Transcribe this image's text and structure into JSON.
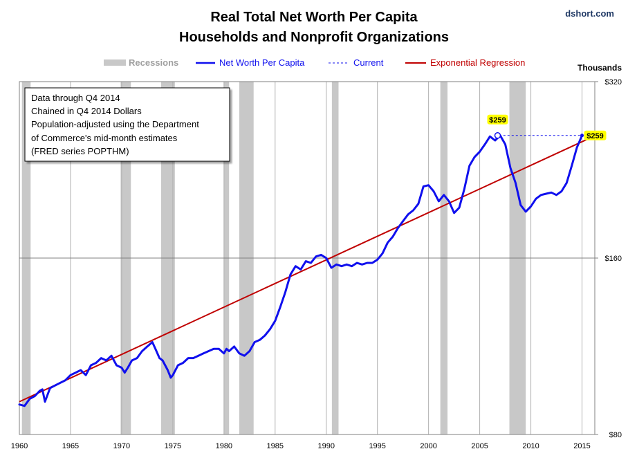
{
  "brand": "dshort.com",
  "chart_data": {
    "type": "line",
    "title": "Real Total Net Worth Per Capita",
    "subtitle": "Households and Nonprofit Organizations",
    "y_unit_label": "Thousands",
    "y_scale": "log",
    "ylim": [
      80,
      320
    ],
    "xlim": [
      1960.0,
      2016.25
    ],
    "x_ticks": [
      1960,
      1965,
      1970,
      1975,
      1980,
      1985,
      1990,
      1995,
      2000,
      2005,
      2010,
      2015
    ],
    "y_ticks": [
      {
        "value": 80,
        "label": "$80"
      },
      {
        "value": 160,
        "label": "$160"
      },
      {
        "value": 320,
        "label": "$320"
      }
    ],
    "grid": true,
    "legend": [
      {
        "label": "Recessions",
        "color": "#c8c8c8",
        "style": "band"
      },
      {
        "label": "Net Worth Per Capita",
        "color": "#1010ee",
        "style": "solid"
      },
      {
        "label": "Current",
        "color": "#1010ee",
        "style": "dashed"
      },
      {
        "label": "Exponential Regression",
        "color": "#c00000",
        "style": "solid"
      }
    ],
    "recessions": [
      [
        1960.25,
        1961.1
      ],
      [
        1969.9,
        1970.9
      ],
      [
        1973.85,
        1975.2
      ],
      [
        1980.0,
        1980.5
      ],
      [
        1981.5,
        1982.9
      ],
      [
        1990.55,
        1991.2
      ],
      [
        2001.15,
        2001.85
      ],
      [
        2007.9,
        2009.5
      ]
    ],
    "series": [
      {
        "name": "Net Worth Per Capita",
        "color": "#1010ee",
        "x": [
          1960.0,
          1960.5,
          1961.0,
          1961.5,
          1962.0,
          1962.25,
          1962.5,
          1963.0,
          1963.5,
          1964.0,
          1964.5,
          1965.0,
          1965.5,
          1966.0,
          1966.5,
          1967.0,
          1967.5,
          1968.0,
          1968.5,
          1969.0,
          1969.5,
          1970.0,
          1970.3,
          1970.6,
          1971.0,
          1971.5,
          1972.0,
          1972.5,
          1973.0,
          1973.3,
          1973.7,
          1974.0,
          1974.5,
          1974.8,
          1975.0,
          1975.5,
          1976.0,
          1976.5,
          1977.0,
          1977.5,
          1978.0,
          1978.5,
          1979.0,
          1979.5,
          1980.0,
          1980.25,
          1980.5,
          1981.0,
          1981.5,
          1982.0,
          1982.5,
          1983.0,
          1983.5,
          1984.0,
          1984.5,
          1985.0,
          1985.5,
          1986.0,
          1986.5,
          1987.0,
          1987.5,
          1988.0,
          1988.5,
          1989.0,
          1989.5,
          1990.0,
          1990.5,
          1991.0,
          1991.5,
          1992.0,
          1992.5,
          1993.0,
          1993.5,
          1994.0,
          1994.5,
          1995.0,
          1995.5,
          1996.0,
          1996.5,
          1997.0,
          1997.5,
          1998.0,
          1998.5,
          1999.0,
          1999.5,
          2000.0,
          2000.5,
          2001.0,
          2001.5,
          2002.0,
          2002.5,
          2003.0,
          2003.5,
          2004.0,
          2004.5,
          2005.0,
          2005.5,
          2006.0,
          2006.5,
          2007.0,
          2007.5,
          2008.0,
          2008.5,
          2009.0,
          2009.5,
          2010.0,
          2010.5,
          2011.0,
          2011.5,
          2012.0,
          2012.5,
          2013.0,
          2013.5,
          2014.0,
          2014.5,
          2015.0
        ],
        "values": [
          90,
          89.5,
          92,
          93,
          95,
          95.5,
          91,
          96,
          97,
          98,
          99,
          101,
          102,
          103,
          101,
          105,
          106,
          108,
          107,
          109,
          105,
          104,
          102,
          104,
          107,
          108,
          111,
          113,
          115,
          112,
          108,
          107,
          103,
          100,
          101,
          105,
          106,
          108,
          108,
          109,
          110,
          111,
          112,
          112,
          110,
          112,
          111,
          113,
          110,
          109,
          111,
          115,
          116,
          118,
          121,
          125,
          132,
          140,
          150,
          155,
          153,
          158,
          157,
          161,
          162,
          160,
          154,
          156,
          155,
          156,
          155,
          157,
          156,
          157,
          157,
          159,
          163,
          170,
          174,
          180,
          185,
          190,
          193,
          198,
          212,
          213,
          208,
          200,
          205,
          200,
          191,
          195,
          210,
          230,
          238,
          243,
          250,
          258,
          254,
          259,
          250,
          228,
          215,
          197,
          192,
          196,
          202,
          205,
          206,
          207,
          205,
          208,
          215,
          230,
          247,
          259
        ]
      },
      {
        "name": "Current",
        "color": "#1010ee",
        "style": "dashed",
        "value": 259,
        "x_range": [
          2006.5,
          2015.0
        ]
      },
      {
        "name": "Exponential Regression",
        "color": "#c00000",
        "x_range": [
          1960.0,
          2015.9
        ],
        "value_start": 91,
        "value_end": 257
      }
    ],
    "annotations": [
      {
        "label": "$259",
        "x": 2006.75,
        "value": 259
      },
      {
        "label": "$259",
        "x": 2015.0,
        "value": 259
      }
    ],
    "note_lines": [
      "Data through  Q4 2014",
      "Chained in Q4 2014 Dollars",
      "Population-adjusted  using the Department",
      "of Commerce's mid-month  estimates",
      "(FRED series POPTHM)"
    ]
  }
}
